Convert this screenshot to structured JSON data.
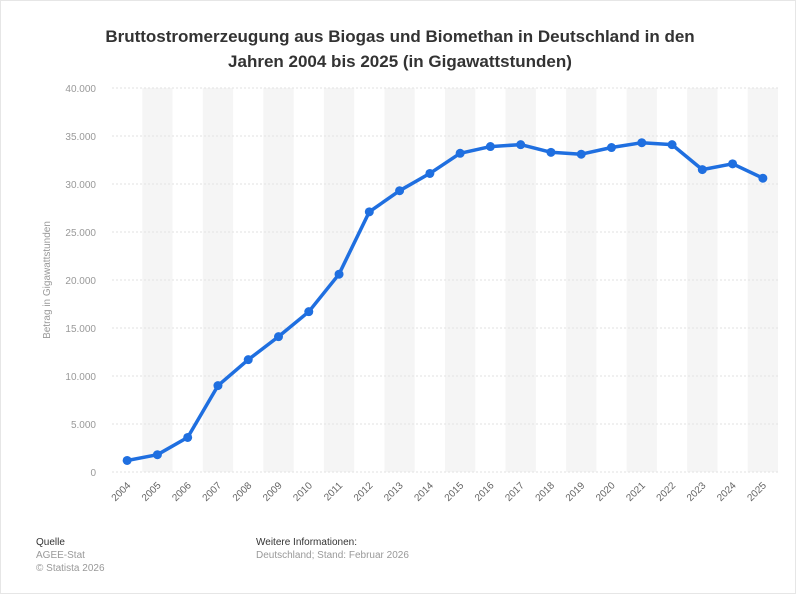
{
  "title_line1": "Bruttostromerzeugung aus Biogas und Biomethan in Deutschland in den",
  "title_line2": "Jahren 2004 bis 2025 (in Gigawattstunden)",
  "chart_data": {
    "type": "line",
    "title": "Bruttostromerzeugung aus Biogas und Biomethan in Deutschland in den Jahren 2004 bis 2025 (in Gigawattstunden)",
    "xlabel": "",
    "ylabel": "Betrag in Gigawattstunden",
    "ylim": [
      0,
      40000
    ],
    "yticks": [
      0,
      5000,
      10000,
      15000,
      20000,
      25000,
      30000,
      35000,
      40000
    ],
    "ytick_labels": [
      "0",
      "5.000",
      "10.000",
      "15.000",
      "20.000",
      "25.000",
      "30.000",
      "35.000",
      "40.000"
    ],
    "categories": [
      "2004",
      "2005",
      "2006",
      "2007",
      "2008",
      "2009",
      "2010",
      "2011",
      "2012",
      "2013",
      "2014",
      "2015",
      "2016",
      "2017",
      "2018",
      "2019",
      "2020",
      "2021",
      "2022",
      "2023",
      "2024",
      "2025"
    ],
    "series": [
      {
        "values": [
          1200,
          1800,
          3600,
          9000,
          11700,
          14100,
          16700,
          20600,
          27100,
          29300,
          31100,
          33200,
          33900,
          34100,
          33300,
          33100,
          33800,
          34300,
          34100,
          31500,
          32100,
          30600
        ]
      }
    ],
    "grid": true,
    "line_color": "#1f6fe0"
  },
  "footer": {
    "source_heading": "Quelle",
    "source_lines": [
      "AGEE-Stat",
      "© Statista 2026"
    ],
    "info_heading": "Weitere Informationen:",
    "info_text": "Deutschland; Stand: Februar 2026"
  }
}
